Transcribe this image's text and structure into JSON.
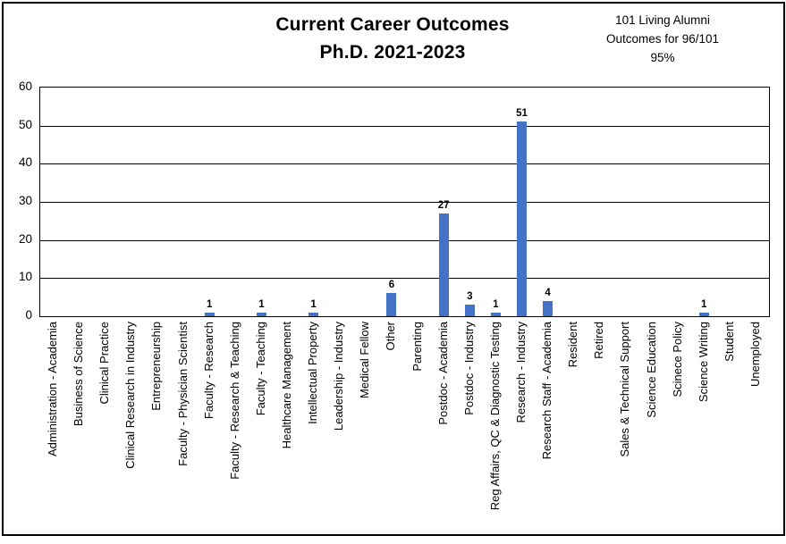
{
  "title": {
    "line1": "Current Career Outcomes",
    "line2": "Ph.D. 2021-2023"
  },
  "annotation": {
    "line1": "101 Living Alumni",
    "line2": "Outcomes for 96/101",
    "line3": "95%"
  },
  "chart_data": {
    "type": "bar",
    "title": "Current Career Outcomes Ph.D. 2021-2023",
    "categories": [
      "Administration - Academia",
      "Business of Science",
      "Clinical Practice",
      "Clinical Research in Industry",
      "Entrepreneurship",
      "Faculty - Physician Scientist",
      "Faculty - Research",
      "Faculty - Research & Teaching",
      "Faculty - Teaching",
      "Healthcare Management",
      "Intellectual Property",
      "Leadership - Industry",
      "Medical Fellow",
      "Other",
      "Parenting",
      "Postdoc - Academia",
      "Postdoc - Industry",
      "Reg Affairs, QC & Diagnostic Testing",
      "Research - Industry",
      "Research Staff - Academia",
      "Resident",
      "Retired",
      "Sales & Technical Support",
      "Science Education",
      "Scinece Policy",
      "Science Writing",
      "Student",
      "Unemployed"
    ],
    "values": [
      0,
      0,
      0,
      0,
      0,
      0,
      1,
      0,
      1,
      0,
      1,
      0,
      0,
      6,
      0,
      27,
      3,
      1,
      51,
      4,
      0,
      0,
      0,
      0,
      0,
      1,
      0,
      0
    ],
    "xlabel": "",
    "ylabel": "",
    "ylim": [
      0,
      60
    ],
    "yticks": [
      0,
      10,
      20,
      30,
      40,
      50,
      60
    ],
    "grid": true,
    "legend": "none",
    "bar_color": "#4472C4",
    "data_labels_shown_for": "non-zero values"
  }
}
